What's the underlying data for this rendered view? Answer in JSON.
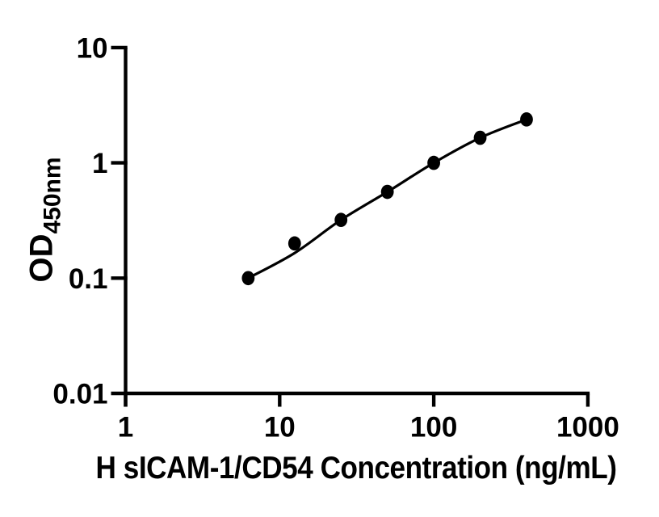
{
  "chart_data": {
    "type": "scatter",
    "title": "",
    "xlabel": "H sICAM-1/CD54 Concentration (ng/mL)",
    "ylabel": "OD450nm",
    "ylabel_main": "OD",
    "ylabel_sub": "450nm",
    "x_scale": "log",
    "y_scale": "log",
    "xlim": [
      1,
      1000
    ],
    "ylim": [
      0.01,
      10
    ],
    "x_ticks": {
      "values": [
        1,
        10,
        100,
        1000
      ],
      "labels": [
        "1",
        "10",
        "100",
        "1000"
      ]
    },
    "y_ticks": {
      "values": [
        0.01,
        0.1,
        1,
        10
      ],
      "labels": [
        "0.01",
        "0.1",
        "1",
        "10"
      ]
    },
    "grid": false,
    "legend": false,
    "series": [
      {
        "name": "standard-curve-points",
        "marker": "filled-circle",
        "color": "#000000",
        "x": [
          6.25,
          12.5,
          25,
          50,
          100,
          200,
          400
        ],
        "y": [
          0.1,
          0.2,
          0.32,
          0.56,
          1.0,
          1.65,
          2.38
        ]
      }
    ],
    "trend_line": {
      "name": "fitted-curve",
      "color": "#000000",
      "x": [
        6.25,
        12.5,
        25,
        50,
        100,
        200,
        400
      ],
      "y": [
        0.1,
        0.165,
        0.32,
        0.56,
        1.0,
        1.65,
        2.38
      ]
    }
  }
}
